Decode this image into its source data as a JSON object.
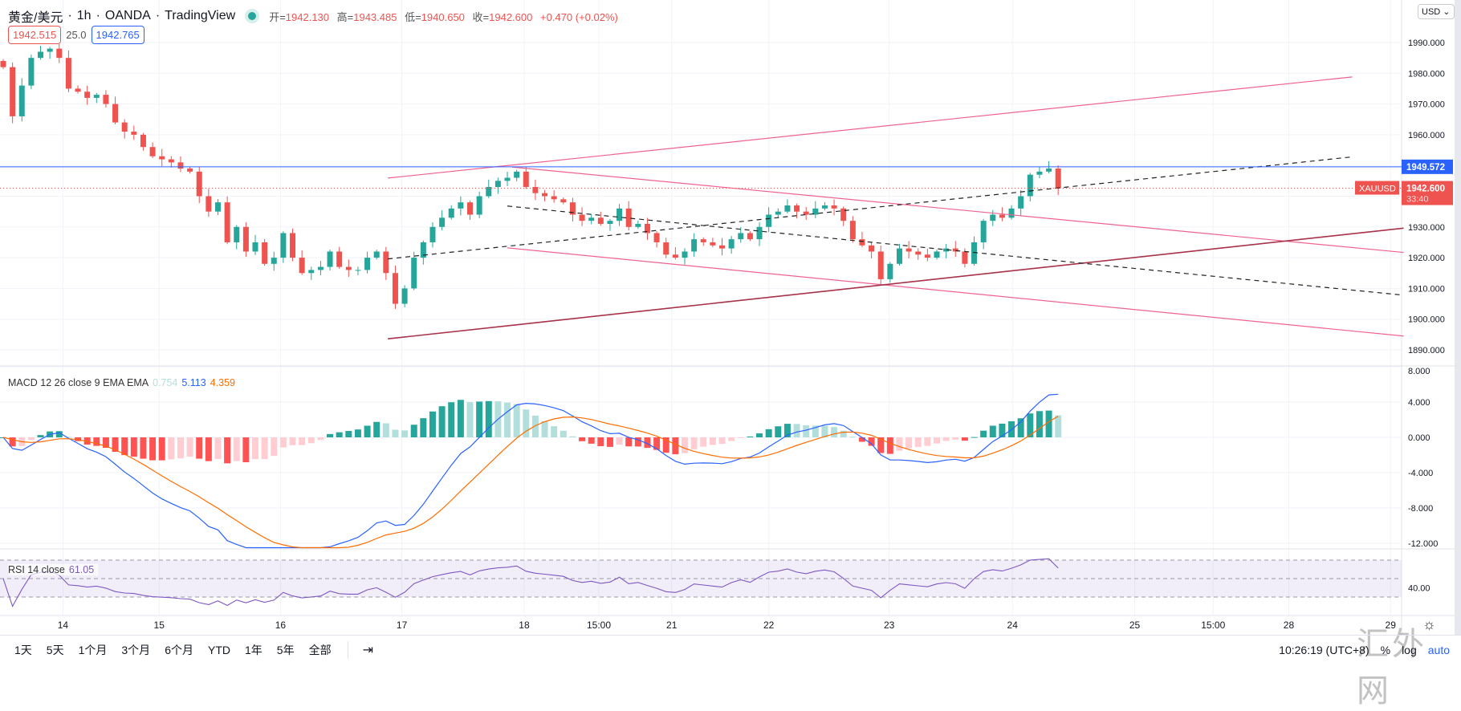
{
  "header": {
    "symbol": "黄金/美元",
    "interval": "1h",
    "broker": "OANDA",
    "source": "TradingView",
    "open_label": "开=",
    "open": "1942.130",
    "high_label": "高=",
    "high": "1943.485",
    "low_label": "低=",
    "low": "1940.650",
    "close_label": "收=",
    "close": "1942.600",
    "change": "+0.470 (+0.02%)",
    "bid": "1942.515",
    "spread": "25.0",
    "ask": "1942.765"
  },
  "currency_select": "USD",
  "price_axis": {
    "ticks": [
      1990,
      1980,
      1970,
      1960,
      1950,
      1940,
      1930,
      1920,
      1910,
      1900,
      1890
    ],
    "tick_labels": [
      "1990.000",
      "1980.000",
      "1970.000",
      "1960.000",
      "1930.000",
      "1920.000",
      "1910.000",
      "1900.000",
      "1890.000"
    ],
    "hline_price": "1949.572",
    "last_price": "1942.600",
    "countdown": "33:40",
    "symbol_tag": "XAUUSD"
  },
  "macd": {
    "label": "MACD 12 26 close 9 EMA EMA",
    "hist": "0.754",
    "macd": "5.113",
    "signal": "4.359",
    "ticks": [
      "8.000",
      "4.000",
      "0.000",
      "-4.000",
      "-8.000",
      "-12.000"
    ]
  },
  "rsi": {
    "label": "RSI 14 close",
    "value": "61.05",
    "tick": "40.00"
  },
  "time_axis": [
    "14",
    "15",
    "16",
    "17",
    "18",
    "15:00",
    "21",
    "22",
    "23",
    "24",
    "25",
    "15:00",
    "28",
    "29"
  ],
  "bottom": {
    "ranges": [
      "1天",
      "5天",
      "1个月",
      "3个月",
      "6个月",
      "YTD",
      "1年",
      "5年",
      "全部"
    ],
    "clock": "10:26:19 (UTC+8)",
    "pct": "%",
    "log": "log",
    "auto": "auto"
  },
  "watermark": "汇外网",
  "colors": {
    "up": "#26a69a",
    "down": "#ef5350",
    "macd": "#2962ff",
    "signal": "#ff6d00",
    "rsi": "#7e57c2",
    "channel": "#f06292",
    "hline": "#2962ff"
  },
  "chart_data": {
    "type": "candlestick",
    "symbol": "XAUUSD",
    "ylim": [
      1885,
      2000
    ],
    "closes": [
      1982,
      1966,
      1976,
      1985,
      1987,
      1988,
      1985,
      1975,
      1974,
      1972,
      1973,
      1970,
      1964,
      1961,
      1960,
      1956,
      1953,
      1952,
      1951,
      1949,
      1948,
      1940,
      1935,
      1938,
      1925,
      1930,
      1922,
      1925,
      1918,
      1920,
      1928,
      1920,
      1915,
      1916,
      1917,
      1922,
      1917,
      1916,
      1916,
      1920,
      1922,
      1915,
      1905,
      1910,
      1920,
      1925,
      1930,
      1933,
      1936,
      1938,
      1934,
      1940,
      1943,
      1945,
      1946,
      1948,
      1943,
      1941,
      1940,
      1939,
      1938,
      1934,
      1932,
      1933,
      1931,
      1932,
      1936,
      1930,
      1931,
      1928,
      1925,
      1921,
      1920,
      1922,
      1926,
      1925,
      1924,
      1923,
      1926,
      1928,
      1926,
      1930,
      1934,
      1935,
      1937,
      1935,
      1934,
      1936,
      1937,
      1936,
      1932,
      1926,
      1924,
      1922,
      1913,
      1918,
      1923,
      1922,
      1921,
      1920,
      1922,
      1923,
      1922,
      1918,
      1925,
      1932,
      1934,
      1933,
      1936,
      1940,
      1947,
      1948,
      1949,
      1942.6
    ],
    "time_label_index": [
      6.4,
      16.7,
      29.7,
      42.7,
      55.8,
      63.8,
      71.6,
      82,
      94.9,
      108.1,
      121.2,
      129.6,
      137.7,
      148.6
    ],
    "drawings": [
      {
        "kind": "channel",
        "from": [
          41.2,
          1945.9
        ],
        "to": [
          144.5,
          1978.8
        ]
      },
      {
        "kind": "channel",
        "from": [
          54.5,
          1949.5
        ],
        "to": [
          150,
          1921.7
        ]
      },
      {
        "kind": "channel",
        "from": [
          54,
          1923.2
        ],
        "to": [
          150,
          1894.5
        ]
      },
      {
        "kind": "trend",
        "from": [
          41.2,
          1893.6
        ],
        "to": [
          150,
          1929.6
        ]
      },
      {
        "kind": "dashed",
        "from": [
          41.2,
          1919.6
        ],
        "to": [
          144.5,
          1952.8
        ]
      },
      {
        "kind": "dashed",
        "from": [
          54,
          1936.8
        ],
        "to": [
          150,
          1907.8
        ]
      }
    ]
  }
}
